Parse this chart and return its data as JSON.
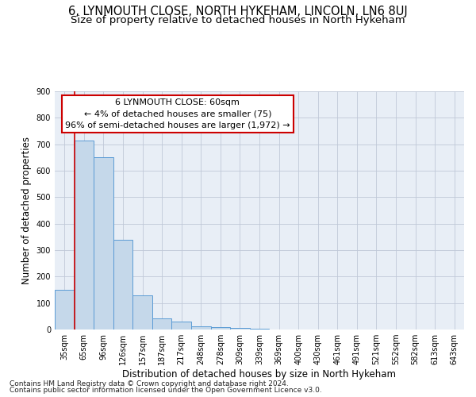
{
  "title": "6, LYNMOUTH CLOSE, NORTH HYKEHAM, LINCOLN, LN6 8UJ",
  "subtitle": "Size of property relative to detached houses in North Hykeham",
  "xlabel": "Distribution of detached houses by size in North Hykeham",
  "ylabel": "Number of detached properties",
  "footer_line1": "Contains HM Land Registry data © Crown copyright and database right 2024.",
  "footer_line2": "Contains public sector information licensed under the Open Government Licence v3.0.",
  "annotation_line1": "6 LYNMOUTH CLOSE: 60sqm",
  "annotation_line2": "← 4% of detached houses are smaller (75)",
  "annotation_line3": "96% of semi-detached houses are larger (1,972) →",
  "bar_categories": [
    "35sqm",
    "65sqm",
    "96sqm",
    "126sqm",
    "157sqm",
    "187sqm",
    "217sqm",
    "248sqm",
    "278sqm",
    "309sqm",
    "339sqm",
    "369sqm",
    "400sqm",
    "430sqm",
    "461sqm",
    "491sqm",
    "521sqm",
    "552sqm",
    "582sqm",
    "613sqm",
    "643sqm"
  ],
  "bar_values": [
    150,
    715,
    650,
    340,
    128,
    42,
    30,
    12,
    8,
    5,
    2,
    0,
    0,
    0,
    0,
    0,
    0,
    0,
    0,
    0,
    0
  ],
  "bar_color": "#c5d8ea",
  "bar_edge_color": "#5b9bd5",
  "vline_color": "#cc0000",
  "box_color": "#cc0000",
  "ylim": [
    0,
    900
  ],
  "yticks": [
    0,
    100,
    200,
    300,
    400,
    500,
    600,
    700,
    800,
    900
  ],
  "grid_color": "#c0c8d8",
  "background_color": "#e8eef6",
  "title_fontsize": 10.5,
  "subtitle_fontsize": 9.5,
  "axis_label_fontsize": 8.5,
  "tick_fontsize": 7,
  "annotation_fontsize": 8,
  "footer_fontsize": 6.5
}
